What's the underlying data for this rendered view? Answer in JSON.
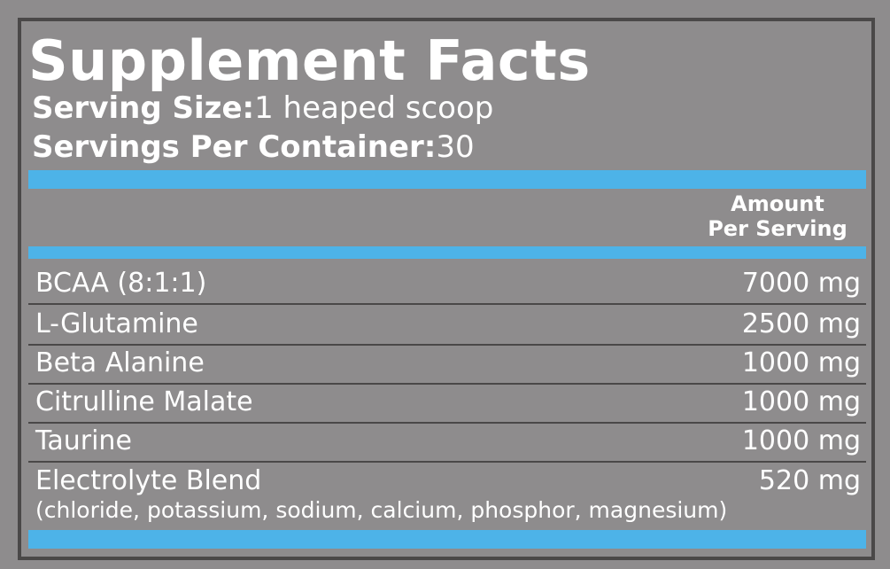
{
  "title": "Supplement Facts",
  "serving_size": {
    "label": "Serving Size:",
    "value": "1 heaped scoop"
  },
  "servings_per_container": {
    "label": "Servings Per Container:",
    "value": "30"
  },
  "header": {
    "line1": "Amount",
    "line2": "Per Serving"
  },
  "rows": [
    {
      "name": "BCAA (8:1:1)",
      "amount": "7000 mg"
    },
    {
      "name": "L-Glutamine",
      "amount": "2500 mg"
    },
    {
      "name": "Beta Alanine",
      "amount": "1000 mg"
    },
    {
      "name": "Citrulline Malate",
      "amount": "1000 mg"
    },
    {
      "name": "Taurine",
      "amount": "1000 mg"
    },
    {
      "name": "Electrolyte Blend",
      "amount": "520 mg",
      "detail": "(chloride, potassium, sodium, calcium, phosphor, magnesium)"
    }
  ],
  "colors": {
    "background": "#8e8c8d",
    "accent": "#4db3e8",
    "border": "#4a4848"
  }
}
